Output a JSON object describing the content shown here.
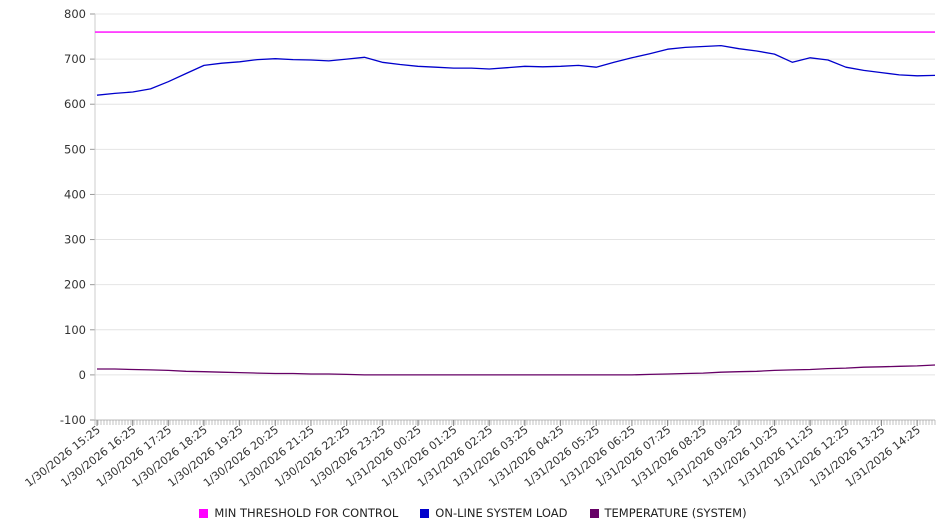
{
  "chart_data": {
    "type": "line",
    "title": "",
    "xlabel": "",
    "ylabel": "",
    "ylim": [
      -100,
      800
    ],
    "y_ticks": [
      -100,
      0,
      100,
      200,
      300,
      400,
      500,
      600,
      700,
      800
    ],
    "grid": true,
    "legend_position": "bottom",
    "x_tick_labels": [
      "1/30/2026 15:25",
      "1/30/2026 16:25",
      "1/30/2026 17:25",
      "1/30/2026 18:25",
      "1/30/2026 19:25",
      "1/30/2026 20:25",
      "1/30/2026 21:25",
      "1/30/2026 22:25",
      "1/30/2026 23:25",
      "1/31/2026 00:25",
      "1/31/2026 01:25",
      "1/31/2026 02:25",
      "1/31/2026 03:25",
      "1/31/2026 04:25",
      "1/31/2026 05:25",
      "1/31/2026 06:25",
      "1/31/2026 07:25",
      "1/31/2026 08:25",
      "1/31/2026 09:25",
      "1/31/2026 10:25",
      "1/31/2026 11:25",
      "1/31/2026 12:25",
      "1/31/2026 13:25",
      "1/31/2026 14:25"
    ],
    "x_hours": [
      0,
      0.5,
      1,
      1.5,
      2,
      2.5,
      3,
      3.5,
      4,
      4.5,
      5,
      5.5,
      6,
      6.5,
      7,
      7.5,
      8,
      8.5,
      9,
      9.5,
      10,
      10.5,
      11,
      11.5,
      12,
      12.5,
      13,
      13.5,
      14,
      14.5,
      15,
      15.5,
      16,
      16.5,
      17,
      17.5,
      18,
      18.5,
      19,
      19.5,
      20,
      20.5,
      21,
      21.5,
      22,
      22.5,
      23,
      23.5
    ],
    "series": [
      {
        "name": "MIN THRESHOLD FOR CONTROL",
        "color": "#ff00ff",
        "style": "constant",
        "value": 760
      },
      {
        "name": "ON-LINE SYSTEM LOAD",
        "color": "#0000cc",
        "style": "line",
        "values": [
          620,
          624,
          627,
          634,
          650,
          668,
          686,
          691,
          694,
          699,
          701,
          699,
          698,
          696,
          700,
          704,
          693,
          688,
          684,
          682,
          680,
          680,
          678,
          681,
          684,
          683,
          684,
          686,
          682,
          693,
          703,
          712,
          722,
          726,
          728,
          730,
          723,
          718,
          711,
          693,
          703,
          698,
          682,
          675,
          670,
          665,
          663,
          664
        ]
      },
      {
        "name": "TEMPERATURE (SYSTEM)",
        "color": "#660066",
        "style": "line",
        "values": [
          13,
          13,
          12,
          11,
          10,
          8,
          7,
          6,
          5,
          4,
          3,
          3,
          2,
          2,
          1,
          0,
          0,
          0,
          0,
          0,
          0,
          0,
          0,
          0,
          0,
          0,
          0,
          0,
          0,
          0,
          0,
          1,
          2,
          3,
          4,
          6,
          7,
          8,
          10,
          11,
          12,
          14,
          15,
          17,
          18,
          19,
          20,
          22
        ]
      }
    ]
  }
}
